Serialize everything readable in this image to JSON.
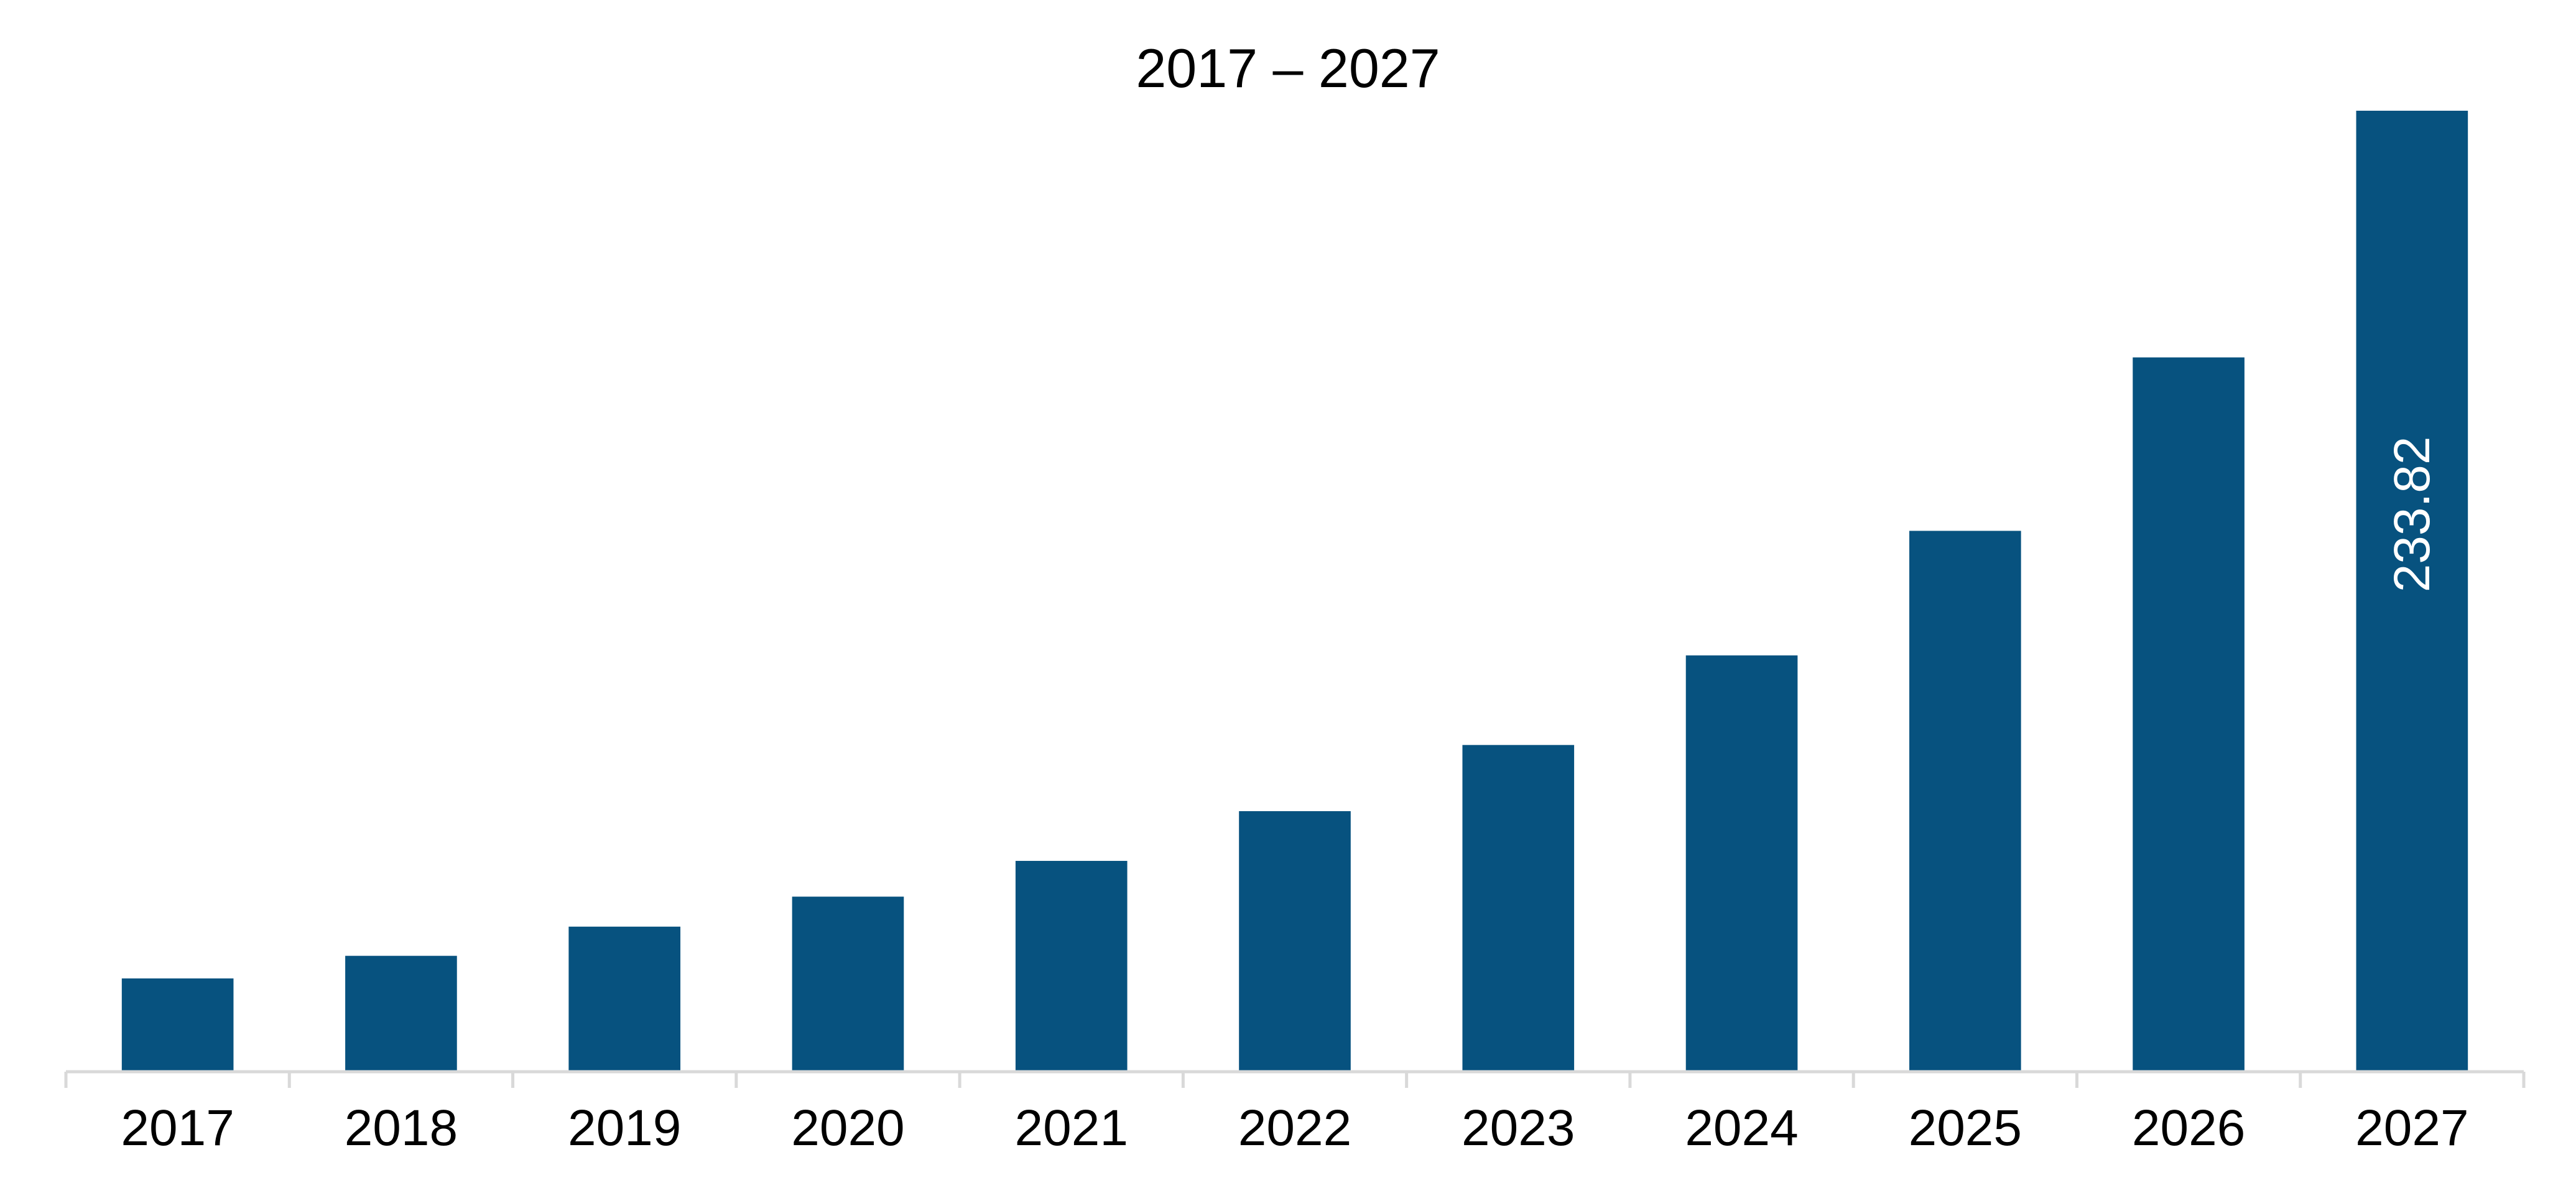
{
  "chart_data": {
    "type": "bar",
    "title": "2017 – 2027",
    "categories": [
      "2017",
      "2018",
      "2019",
      "2020",
      "2021",
      "2022",
      "2023",
      "2024",
      "2025",
      "2026",
      "2027"
    ],
    "values": [
      22.7,
      28.2,
      35.3,
      42.6,
      51.3,
      63.4,
      79.5,
      101.3,
      131.6,
      173.8,
      233.82
    ],
    "data_labels": [
      {
        "category": "2027",
        "text": "233.82"
      }
    ],
    "ylim": [
      0,
      233.82
    ],
    "y_axis_visible": false,
    "grid": false,
    "legend": "none",
    "colors": {
      "bar": "#07527f",
      "axis": "#d9d9d9",
      "text": "#000000",
      "data_label": "#ffffff"
    }
  }
}
